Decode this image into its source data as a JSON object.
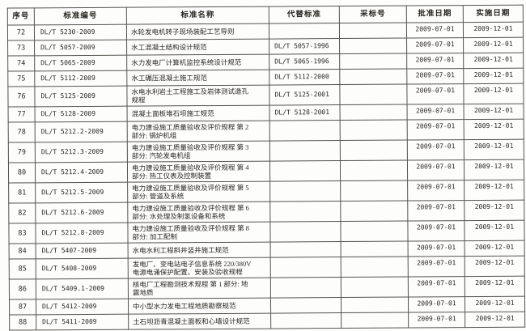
{
  "colors": {
    "paper": "#fdfdfb",
    "ink": "#28251f",
    "grid_line": "#55524c"
  },
  "table": {
    "columns": [
      {
        "key": "index",
        "label": "序号"
      },
      {
        "key": "code",
        "label": "标准编号"
      },
      {
        "key": "name",
        "label": "标准名称"
      },
      {
        "key": "replaces",
        "label": "代替标准"
      },
      {
        "key": "adopted",
        "label": "采标号"
      },
      {
        "key": "approved",
        "label": "批准日期"
      },
      {
        "key": "effective",
        "label": "实施日期"
      }
    ],
    "rows": [
      {
        "index": "72",
        "code": "DL/T 5230-2009",
        "name": "水轮发电机转子现场装配工艺导则",
        "replaces": "",
        "adopted": "",
        "approved": "2009-07-01",
        "effective": "2009-12-01"
      },
      {
        "index": "73",
        "code": "DL/T 5057-2009",
        "name": "水工混凝土结构设计规范",
        "replaces": "DL/T 5057-1996",
        "adopted": "",
        "approved": "2009-07-01",
        "effective": "2009-12-01"
      },
      {
        "index": "74",
        "code": "DL/T 5065-2009",
        "name": "水力发电厂计算机监控系统设计规范",
        "replaces": "DL/T 5065-1996",
        "adopted": "",
        "approved": "2009-07-01",
        "effective": "2009-12-01"
      },
      {
        "index": "75",
        "code": "DL/T 5112-2009",
        "name": "水工碾压混凝土施工规范",
        "replaces": "DL/T 5112-2000",
        "adopted": "",
        "approved": "2009-07-01",
        "effective": "2009-12-01"
      },
      {
        "index": "76",
        "code": "DL/T 5125-2009",
        "name": "水电水利岩土工程施工及岩体测试造孔\n规程",
        "replaces": "DL/T 5125-2001",
        "adopted": "",
        "approved": "2009-07-01",
        "effective": "2009-12-01"
      },
      {
        "index": "77",
        "code": "DL/T 5128-2009",
        "name": "混凝土面板堆石坝施工规范",
        "replaces": "DL/T 5128-2001",
        "adopted": "",
        "approved": "2009-07-01",
        "effective": "2009-12-01"
      },
      {
        "index": "78",
        "code": "DL/T 5212.2-2009",
        "name": "电力建设施工质量验收及评价规程 第 2\n部分: 锅炉机组",
        "replaces": "",
        "adopted": "",
        "approved": "2009-07-01",
        "effective": "2009-12-01"
      },
      {
        "index": "79",
        "code": "DL/T 5212.3-2009",
        "name": "电力建设施工质量验收及评价规程 第 3\n部分: 汽轮发电机组",
        "replaces": "",
        "adopted": "",
        "approved": "2009-07-01",
        "effective": "2009-12-01"
      },
      {
        "index": "80",
        "code": "DL/T 5212.4-2009",
        "name": "电力建设施工质量验收及评价规程 第 4\n部分: 热工仪表及控制装置",
        "replaces": "",
        "adopted": "",
        "approved": "2009-07-01",
        "effective": "2009-12-01"
      },
      {
        "index": "81",
        "code": "DL/T 5212.5-2009",
        "name": "电力建设施工质量验收及评价规程 第 5\n部分: 管道及系统",
        "replaces": "",
        "adopted": "",
        "approved": "2009-07-01",
        "effective": "2009-12-01"
      },
      {
        "index": "82",
        "code": "DL/T 5212.6-2009",
        "name": "电力建设施工质量验收及评价规程 第 6\n部分: 水处理及制氢设备和系统",
        "replaces": "",
        "adopted": "",
        "approved": "2009-07-01",
        "effective": "2009-12-01"
      },
      {
        "index": "83",
        "code": "DL/T 5212.8-2009",
        "name": "电力建设施工质量验收及评价规程 第 8\n部分: 加工配制",
        "replaces": "",
        "adopted": "",
        "approved": "2009-07-01",
        "effective": "2009-12-01"
      },
      {
        "index": "84",
        "code": "DL/T 5407-2009",
        "name": "水电水利工程斜井竖井施工规范",
        "replaces": "",
        "adopted": "",
        "approved": "2009-07-01",
        "effective": "2009-12-01"
      },
      {
        "index": "85",
        "code": "DL/T 5408-2009",
        "name": "发电厂、变电站电子信息系统 220/380V\n电源电涌保护配置、安装及验收规程",
        "replaces": "",
        "adopted": "",
        "approved": "2009-07-01",
        "effective": "2009-12-01"
      },
      {
        "index": "86",
        "code": "DL/T 5409.1-2009",
        "name": "核电厂工程勘测技术规程 第 1 部分: 地\n震地质",
        "replaces": "",
        "adopted": "",
        "approved": "2009-07-01",
        "effective": "2009-12-01"
      },
      {
        "index": "87",
        "code": "DL/T 5412-2009",
        "name": "中小型水力发电工程地质勘察规范",
        "replaces": "",
        "adopted": "",
        "approved": "2009-07-01",
        "effective": "2009-12-01"
      },
      {
        "index": "88",
        "code": "DL/T 5411-2009",
        "name": "土石坝沥青混凝土面板和心墙设计规范",
        "replaces": "",
        "adopted": "",
        "approved": "2009-07-01",
        "effective": "2009-12-01"
      }
    ]
  }
}
